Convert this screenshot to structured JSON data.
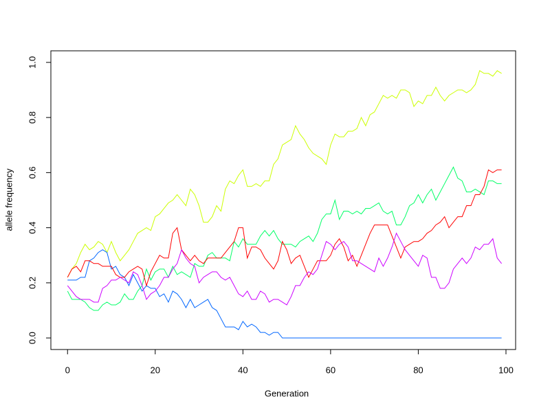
{
  "chart_data": {
    "type": "line",
    "xlabel": "Generation",
    "ylabel": "allele frequency",
    "x": [
      0,
      1,
      2,
      3,
      4,
      5,
      6,
      7,
      8,
      9,
      10,
      11,
      12,
      13,
      14,
      15,
      16,
      17,
      18,
      19,
      20,
      21,
      22,
      23,
      24,
      25,
      26,
      27,
      28,
      29,
      30,
      31,
      32,
      33,
      34,
      35,
      36,
      37,
      38,
      39,
      40,
      41,
      42,
      43,
      44,
      45,
      46,
      47,
      48,
      49,
      50,
      51,
      52,
      53,
      54,
      55,
      56,
      57,
      58,
      59,
      60,
      61,
      62,
      63,
      64,
      65,
      66,
      67,
      68,
      69,
      70,
      71,
      72,
      73,
      74,
      75,
      76,
      77,
      78,
      79,
      80,
      81,
      82,
      83,
      84,
      85,
      86,
      87,
      88,
      89,
      90,
      91,
      92,
      93,
      94,
      95,
      96,
      97,
      98,
      99
    ],
    "series": [
      {
        "color": "#CCFF00",
        "values": [
          0.22,
          0.25,
          0.27,
          0.31,
          0.34,
          0.32,
          0.33,
          0.35,
          0.34,
          0.31,
          0.35,
          0.31,
          0.28,
          0.3,
          0.32,
          0.35,
          0.38,
          0.39,
          0.4,
          0.39,
          0.44,
          0.45,
          0.47,
          0.49,
          0.5,
          0.52,
          0.5,
          0.48,
          0.54,
          0.52,
          0.48,
          0.42,
          0.42,
          0.44,
          0.48,
          0.46,
          0.54,
          0.57,
          0.56,
          0.59,
          0.61,
          0.55,
          0.55,
          0.56,
          0.55,
          0.57,
          0.57,
          0.63,
          0.65,
          0.7,
          0.71,
          0.72,
          0.77,
          0.74,
          0.72,
          0.69,
          0.67,
          0.66,
          0.65,
          0.63,
          0.7,
          0.74,
          0.73,
          0.73,
          0.75,
          0.75,
          0.76,
          0.8,
          0.77,
          0.81,
          0.82,
          0.85,
          0.88,
          0.87,
          0.88,
          0.87,
          0.9,
          0.9,
          0.89,
          0.84,
          0.86,
          0.85,
          0.88,
          0.88,
          0.91,
          0.88,
          0.86,
          0.88,
          0.89,
          0.9,
          0.9,
          0.89,
          0.9,
          0.92,
          0.97,
          0.96,
          0.96,
          0.95,
          0.97,
          0.96
        ]
      },
      {
        "color": "#0066FF",
        "values": [
          0.21,
          0.21,
          0.21,
          0.22,
          0.22,
          0.28,
          0.29,
          0.31,
          0.32,
          0.31,
          0.25,
          0.26,
          0.23,
          0.22,
          0.19,
          0.23,
          0.2,
          0.17,
          0.19,
          0.18,
          0.18,
          0.15,
          0.16,
          0.13,
          0.17,
          0.16,
          0.14,
          0.11,
          0.14,
          0.11,
          0.12,
          0.13,
          0.14,
          0.11,
          0.1,
          0.07,
          0.04,
          0.04,
          0.04,
          0.03,
          0.06,
          0.04,
          0.05,
          0.04,
          0.02,
          0.02,
          0.01,
          0.02,
          0.02,
          0,
          0,
          0,
          0,
          0,
          0,
          0,
          0,
          0,
          0,
          0,
          0,
          0,
          0,
          0,
          0,
          0,
          0,
          0,
          0,
          0,
          0,
          0,
          0,
          0,
          0,
          0,
          0,
          0,
          0,
          0,
          0,
          0,
          0,
          0,
          0,
          0,
          0,
          0,
          0,
          0,
          0,
          0,
          0,
          0,
          0,
          0,
          0,
          0,
          0,
          0
        ]
      },
      {
        "color": "#00FF66",
        "values": [
          0.17,
          0.14,
          0.14,
          0.14,
          0.13,
          0.11,
          0.1,
          0.1,
          0.12,
          0.13,
          0.12,
          0.12,
          0.13,
          0.16,
          0.14,
          0.14,
          0.17,
          0.19,
          0.25,
          0.21,
          0.24,
          0.25,
          0.25,
          0.22,
          0.26,
          0.23,
          0.24,
          0.23,
          0.22,
          0.27,
          0.26,
          0.26,
          0.3,
          0.31,
          0.29,
          0.29,
          0.29,
          0.28,
          0.35,
          0.33,
          0.36,
          0.34,
          0.34,
          0.34,
          0.37,
          0.39,
          0.37,
          0.39,
          0.36,
          0.34,
          0.34,
          0.34,
          0.33,
          0.35,
          0.36,
          0.37,
          0.35,
          0.38,
          0.43,
          0.45,
          0.45,
          0.5,
          0.43,
          0.46,
          0.46,
          0.45,
          0.46,
          0.45,
          0.47,
          0.47,
          0.48,
          0.49,
          0.46,
          0.45,
          0.46,
          0.41,
          0.41,
          0.44,
          0.48,
          0.49,
          0.52,
          0.49,
          0.52,
          0.54,
          0.5,
          0.53,
          0.56,
          0.59,
          0.62,
          0.58,
          0.57,
          0.53,
          0.53,
          0.54,
          0.53,
          0.52,
          0.57,
          0.57,
          0.56,
          0.56
        ]
      },
      {
        "color": "#FF0000",
        "values": [
          0.22,
          0.25,
          0.26,
          0.24,
          0.28,
          0.28,
          0.27,
          0.27,
          0.26,
          0.26,
          0.26,
          0.23,
          0.22,
          0.22,
          0.24,
          0.25,
          0.26,
          0.25,
          0.19,
          0.24,
          0.27,
          0.3,
          0.29,
          0.29,
          0.38,
          0.4,
          0.32,
          0.3,
          0.28,
          0.3,
          0.28,
          0.27,
          0.29,
          0.29,
          0.29,
          0.29,
          0.31,
          0.33,
          0.35,
          0.4,
          0.4,
          0.29,
          0.33,
          0.33,
          0.32,
          0.29,
          0.27,
          0.25,
          0.28,
          0.35,
          0.32,
          0.27,
          0.29,
          0.3,
          0.26,
          0.22,
          0.25,
          0.28,
          0.28,
          0.28,
          0.3,
          0.34,
          0.36,
          0.33,
          0.28,
          0.3,
          0.26,
          0.3,
          0.34,
          0.38,
          0.41,
          0.41,
          0.41,
          0.41,
          0.37,
          0.33,
          0.29,
          0.33,
          0.34,
          0.35,
          0.35,
          0.36,
          0.38,
          0.39,
          0.41,
          0.42,
          0.44,
          0.4,
          0.42,
          0.44,
          0.44,
          0.48,
          0.48,
          0.52,
          0.52,
          0.55,
          0.61,
          0.6,
          0.61,
          0.61
        ]
      },
      {
        "color": "#CC00FF",
        "values": [
          0.19,
          0.17,
          0.15,
          0.14,
          0.14,
          0.14,
          0.13,
          0.13,
          0.18,
          0.19,
          0.21,
          0.21,
          0.22,
          0.21,
          0.2,
          0.24,
          0.23,
          0.19,
          0.14,
          0.16,
          0.17,
          0.19,
          0.22,
          0.22,
          0.25,
          0.27,
          0.32,
          0.29,
          0.27,
          0.26,
          0.2,
          0.22,
          0.23,
          0.24,
          0.24,
          0.22,
          0.21,
          0.22,
          0.19,
          0.16,
          0.15,
          0.17,
          0.14,
          0.14,
          0.17,
          0.16,
          0.13,
          0.14,
          0.14,
          0.13,
          0.12,
          0.15,
          0.19,
          0.19,
          0.22,
          0.24,
          0.23,
          0.25,
          0.3,
          0.35,
          0.34,
          0.32,
          0.34,
          0.35,
          0.33,
          0.28,
          0.28,
          0.27,
          0.26,
          0.25,
          0.24,
          0.29,
          0.26,
          0.29,
          0.33,
          0.38,
          0.35,
          0.32,
          0.3,
          0.28,
          0.26,
          0.3,
          0.29,
          0.22,
          0.22,
          0.18,
          0.18,
          0.2,
          0.25,
          0.27,
          0.29,
          0.27,
          0.29,
          0.33,
          0.32,
          0.34,
          0.34,
          0.36,
          0.29,
          0.27
        ]
      }
    ],
    "xlim": [
      -3.8,
      102.2
    ],
    "ylim": [
      -0.042,
      1.042
    ],
    "xticks": [
      0,
      20,
      40,
      60,
      80,
      100
    ],
    "yticks": [
      {
        "value": 0,
        "label": "0.0"
      },
      0.2,
      0.4,
      0.6,
      0.8,
      {
        "value": 1,
        "label": "1.0"
      }
    ]
  }
}
